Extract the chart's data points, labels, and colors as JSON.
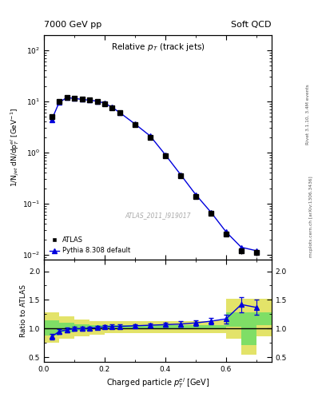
{
  "title_top_left": "7000 GeV pp",
  "title_top_right": "Soft QCD",
  "main_title": "Relative $p_T$ (track jets)",
  "xlabel": "Charged particle $p_T^{el}$ [GeV]",
  "ylabel_main": "1/N$_{jet}$ dN/dp$_T^{el}$ [GeV$^{-1}$]",
  "ylabel_ratio": "Ratio to ATLAS",
  "right_label_top": "Rivet 3.1.10, 3.4M events",
  "right_label_bot": "mcplots.cern.ch [arXiv:1306.3436]",
  "watermark": "ATLAS_2011_I919017",
  "atlas_x": [
    0.025,
    0.05,
    0.075,
    0.1,
    0.125,
    0.15,
    0.175,
    0.2,
    0.225,
    0.25,
    0.3,
    0.35,
    0.4,
    0.45,
    0.5,
    0.55,
    0.6,
    0.65,
    0.7
  ],
  "atlas_y": [
    5.0,
    10.0,
    12.0,
    11.5,
    11.0,
    10.5,
    10.0,
    9.0,
    7.5,
    6.0,
    3.5,
    2.0,
    0.85,
    0.35,
    0.14,
    0.065,
    0.025,
    0.012,
    0.011
  ],
  "atlas_yerr": [
    0.45,
    0.75,
    0.85,
    0.75,
    0.65,
    0.65,
    0.65,
    0.55,
    0.45,
    0.38,
    0.22,
    0.13,
    0.06,
    0.028,
    0.012,
    0.005,
    0.002,
    0.0015,
    0.0015
  ],
  "pythia_x": [
    0.025,
    0.05,
    0.075,
    0.1,
    0.125,
    0.15,
    0.175,
    0.2,
    0.225,
    0.25,
    0.3,
    0.35,
    0.4,
    0.45,
    0.5,
    0.55,
    0.6,
    0.65,
    0.7
  ],
  "pythia_y": [
    4.3,
    9.5,
    11.8,
    11.4,
    10.9,
    10.5,
    10.1,
    9.2,
    7.6,
    6.0,
    3.6,
    2.1,
    0.9,
    0.37,
    0.15,
    0.068,
    0.028,
    0.014,
    0.012
  ],
  "pythia_yerr": [
    0.15,
    0.25,
    0.3,
    0.3,
    0.25,
    0.25,
    0.25,
    0.2,
    0.18,
    0.13,
    0.09,
    0.06,
    0.025,
    0.012,
    0.006,
    0.0025,
    0.001,
    0.0008,
    0.0008
  ],
  "ratio_x": [
    0.025,
    0.05,
    0.075,
    0.1,
    0.125,
    0.15,
    0.175,
    0.2,
    0.225,
    0.25,
    0.3,
    0.35,
    0.4,
    0.45,
    0.5,
    0.55,
    0.6,
    0.65,
    0.7
  ],
  "ratio_y": [
    0.86,
    0.95,
    0.98,
    1.0,
    1.0,
    1.01,
    1.02,
    1.03,
    1.04,
    1.04,
    1.05,
    1.06,
    1.07,
    1.08,
    1.1,
    1.13,
    1.17,
    1.42,
    1.37
  ],
  "ratio_yerr": [
    0.055,
    0.042,
    0.038,
    0.036,
    0.032,
    0.03,
    0.03,
    0.03,
    0.03,
    0.03,
    0.03,
    0.035,
    0.038,
    0.045,
    0.05,
    0.06,
    0.075,
    0.13,
    0.13
  ],
  "band_edges": [
    0.0,
    0.05,
    0.1,
    0.15,
    0.2,
    0.25,
    0.3,
    0.35,
    0.4,
    0.45,
    0.5,
    0.55,
    0.6,
    0.65,
    0.7,
    0.75
  ],
  "green_lo": [
    0.88,
    0.94,
    0.97,
    0.985,
    0.99,
    0.99,
    0.99,
    0.99,
    0.99,
    0.99,
    0.99,
    0.99,
    1.04,
    0.72,
    1.06,
    1.06
  ],
  "green_hi": [
    1.14,
    1.1,
    1.07,
    1.055,
    1.055,
    1.055,
    1.055,
    1.055,
    1.055,
    1.055,
    1.055,
    1.055,
    1.28,
    1.28,
    1.28,
    1.28
  ],
  "yellow_lo": [
    0.75,
    0.82,
    0.87,
    0.9,
    0.92,
    0.92,
    0.92,
    0.92,
    0.92,
    0.92,
    0.92,
    0.92,
    0.82,
    0.54,
    0.87,
    0.87
  ],
  "yellow_hi": [
    1.28,
    1.22,
    1.16,
    1.13,
    1.13,
    1.13,
    1.13,
    1.13,
    1.13,
    1.13,
    1.13,
    1.15,
    1.52,
    1.52,
    1.52,
    1.52
  ],
  "xlim": [
    0.0,
    0.75
  ],
  "ylim_main": [
    0.008,
    200
  ],
  "ylim_ratio": [
    0.42,
    2.2
  ],
  "atlas_color": "#000000",
  "pythia_color": "#0000dd",
  "green_color": "#66dd66",
  "yellow_color": "#dddd44",
  "bg_color": "#ffffff"
}
